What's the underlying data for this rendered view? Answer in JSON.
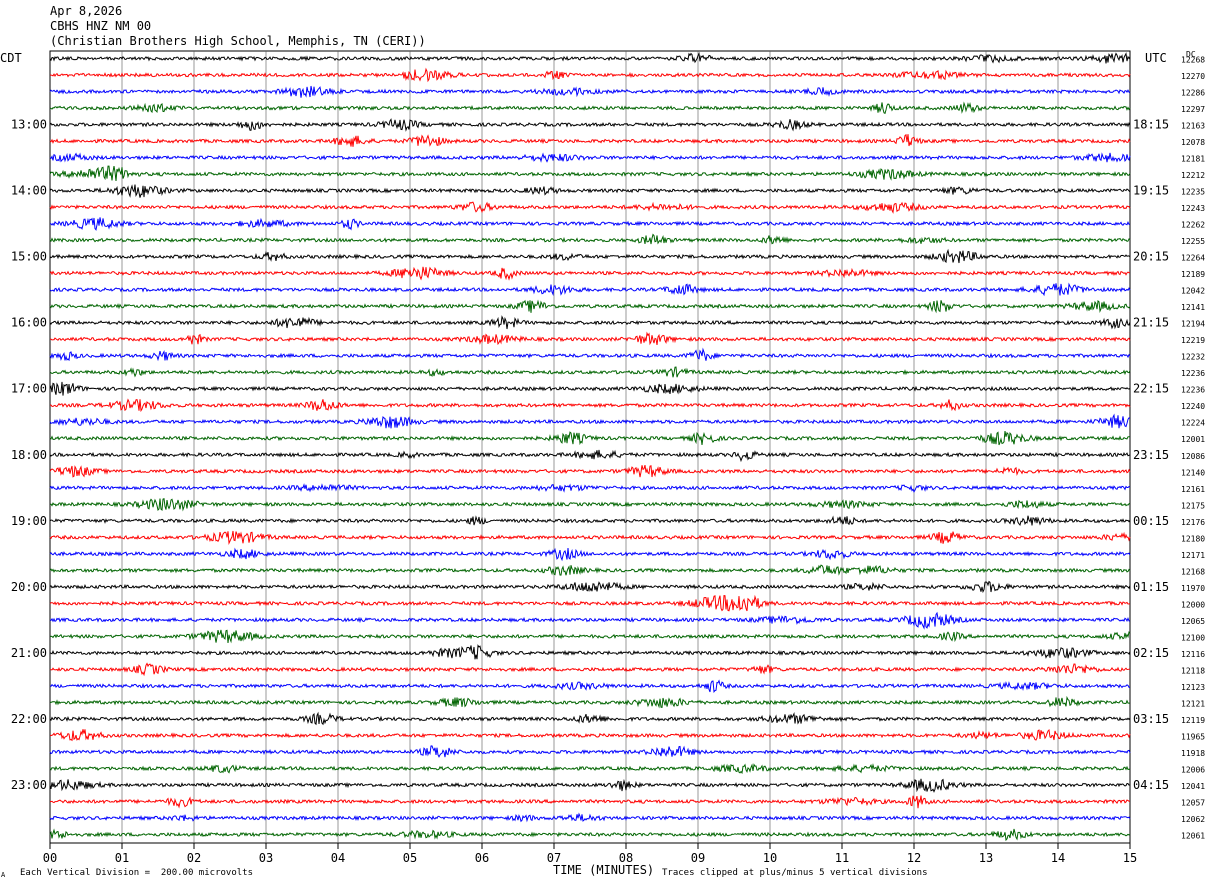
{
  "header": {
    "date": "Apr 8,2026",
    "station": "CBHS HNZ NM 00",
    "location": "(Christian Brothers High School, Memphis, TN (CERI))"
  },
  "left_tz": "CDT",
  "right_tz": "UTC",
  "dc_label": "DC",
  "footer": {
    "scale_note": "Each Vertical Division =  200.00 microvolts",
    "clip_note": "Traces clipped at plus/minus 5 vertical divisions",
    "corner_mark": "A"
  },
  "chart_data": {
    "type": "line",
    "xlabel": "TIME (MINUTES)",
    "xlim": [
      0,
      15
    ],
    "x_ticks": [
      "00",
      "01",
      "02",
      "03",
      "04",
      "05",
      "06",
      "07",
      "08",
      "09",
      "10",
      "11",
      "12",
      "13",
      "14",
      "15"
    ],
    "trace_colors": [
      "#000000",
      "#ff0000",
      "#0000ff",
      "#006400"
    ],
    "left_hour_labels": [
      "13:00",
      "14:00",
      "15:00",
      "16:00",
      "17:00",
      "18:00",
      "19:00",
      "20:00",
      "21:00",
      "22:00",
      "23:00"
    ],
    "right_hour_labels": [
      "18:15",
      "19:15",
      "20:15",
      "21:15",
      "22:15",
      "23:15",
      "00:15",
      "01:15",
      "02:15",
      "03:15",
      "04:15"
    ],
    "hour_label_every_n_traces": 4,
    "first_hour_label_trace_index": 4,
    "dc_offsets": [
      12268,
      12270,
      12286,
      12297,
      12163,
      12078,
      12181,
      12212,
      12235,
      12243,
      12262,
      12255,
      12264,
      12189,
      12042,
      12141,
      12194,
      12219,
      12232,
      12236,
      12236,
      12240,
      12224,
      12001,
      12086,
      12140,
      12161,
      12175,
      12176,
      12180,
      12171,
      12168,
      11970,
      12000,
      12065,
      12100,
      12116,
      12118,
      12123,
      12121,
      12119,
      11965,
      11918,
      12006,
      12041,
      12057,
      12062,
      12061
    ]
  }
}
